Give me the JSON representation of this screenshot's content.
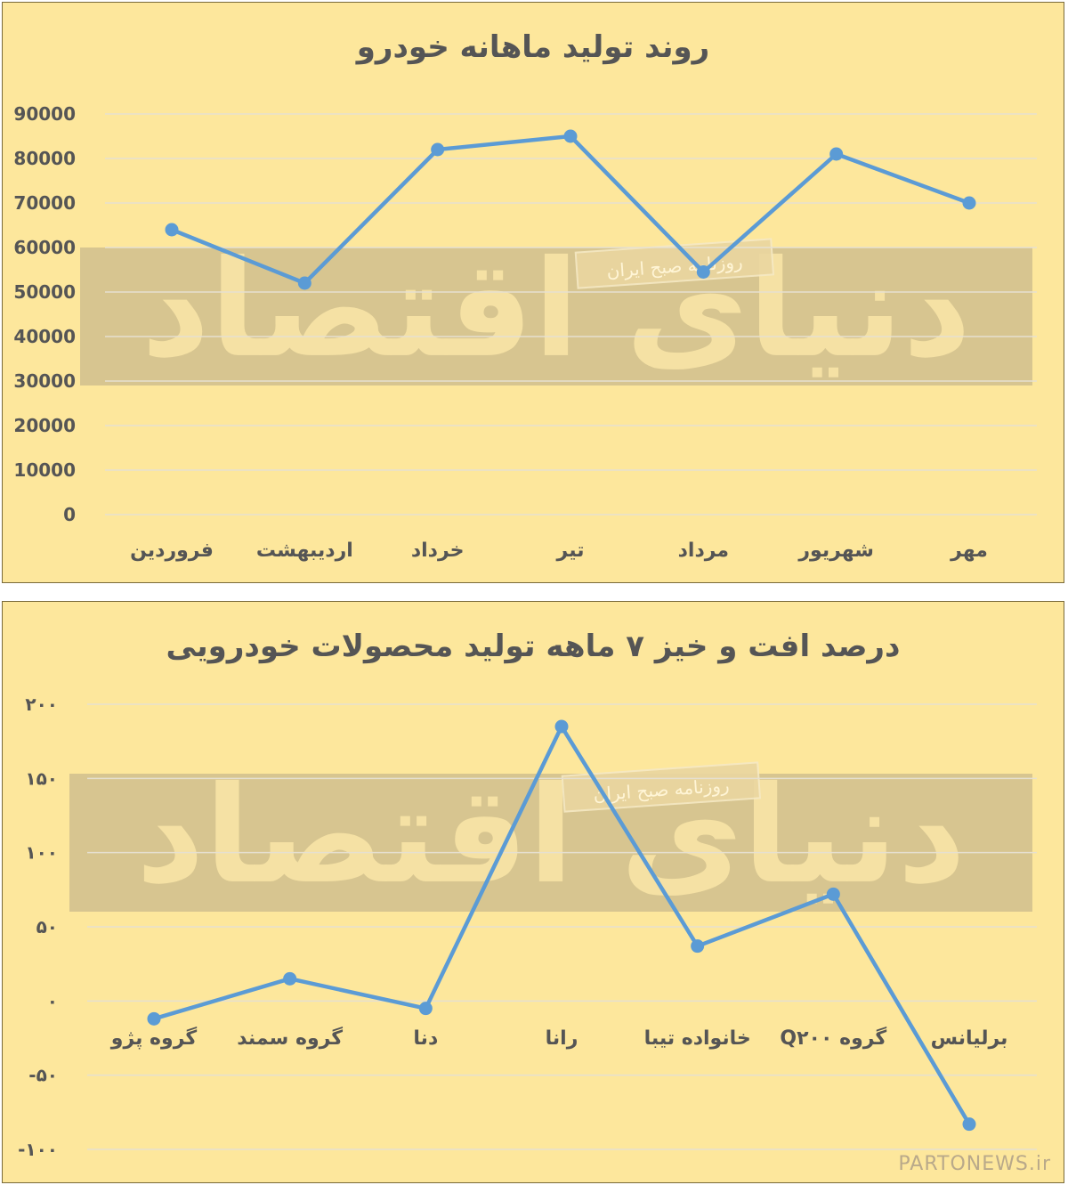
{
  "charts": [
    {
      "title": "روند تولید ماهانه خودرو",
      "chart_data": {
        "type": "line",
        "categories": [
          "فروردین",
          "اردیبهشت",
          "خرداد",
          "تیر",
          "مرداد",
          "شهریور",
          "مهر"
        ],
        "values": [
          64000,
          52000,
          82000,
          85000,
          54500,
          81000,
          70000
        ],
        "ylim": [
          0,
          90000
        ],
        "yticks": [
          0,
          10000,
          20000,
          30000,
          40000,
          50000,
          60000,
          70000,
          80000,
          90000
        ],
        "ytick_labels": [
          "0",
          "10000",
          "20000",
          "30000",
          "40000",
          "50000",
          "60000",
          "70000",
          "80000",
          "90000"
        ],
        "grid": true,
        "line_color": "#5b9bd5"
      }
    },
    {
      "title": "درصد افت و خیز ۷ ماهه تولید محصولات خودرویی",
      "chart_data": {
        "type": "line",
        "categories": [
          "گروه پژو",
          "گروه سمند",
          "دنا",
          "رانا",
          "خانواده تیبا",
          "گروه Q۲۰۰",
          "برلیانس"
        ],
        "values": [
          -12,
          15,
          -5,
          185,
          37,
          72,
          -83
        ],
        "ylim": [
          -100,
          200
        ],
        "yticks": [
          -100,
          -50,
          0,
          50,
          100,
          150,
          200
        ],
        "ytick_labels": [
          "-۱۰۰",
          "-۵۰",
          "۰",
          "۵۰",
          "۱۰۰",
          "۱۵۰",
          "۲۰۰"
        ],
        "grid": true,
        "line_color": "#5b9bd5"
      }
    }
  ],
  "watermark": {
    "logo_text": "دنیای اقتصاد",
    "tagline": "روزنامه صبح ایران"
  },
  "footer": {
    "site": "PARTONEWS.ir"
  },
  "colors": {
    "background": "#fde79c",
    "band": "#c9b98c",
    "grid": "#e6e0d0",
    "axis_text": "#555555"
  }
}
